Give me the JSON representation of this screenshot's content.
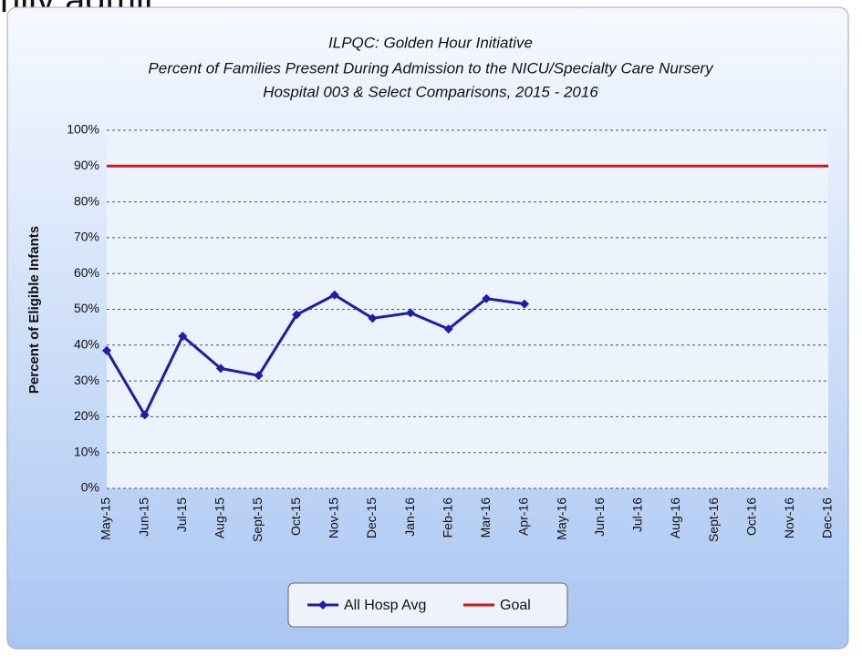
{
  "header_text": "nily admit",
  "chart_data": {
    "type": "line",
    "title": "ILPQC: Golden Hour Initiative",
    "subtitle": [
      "Percent of Families Present During Admission to the NICU/Specialty Care Nursery",
      "Hospital 003 & Select Comparisons, 2015 - 2016"
    ],
    "y_label": "Percent of Eligible Infants",
    "categories": [
      "May-15",
      "Jun-15",
      "Jul-15",
      "Aug-15",
      "Sept-15",
      "Oct-15",
      "Nov-15",
      "Dec-15",
      "Jan-16",
      "Feb-16",
      "Mar-16",
      "Apr-16",
      "May-16",
      "Jun-16",
      "Jul-16",
      "Aug-16",
      "Sept-16",
      "Oct-16",
      "Nov-16",
      "Dec-16"
    ],
    "series": [
      {
        "name": "All Hosp Avg",
        "color": "#1c1cb4",
        "marker": "diamond",
        "values": [
          38.5,
          20.5,
          42.5,
          33.5,
          31.5,
          48.5,
          54,
          47.5,
          49,
          44.5,
          53,
          51.5,
          null,
          null,
          null,
          null,
          null,
          null,
          null,
          null
        ]
      },
      {
        "name": "Goal",
        "color": "#e01010",
        "marker": "none",
        "values": [
          90,
          90,
          90,
          90,
          90,
          90,
          90,
          90,
          90,
          90,
          90,
          90,
          90,
          90,
          90,
          90,
          90,
          90,
          90,
          90
        ]
      }
    ],
    "ylim": [
      0,
      100
    ],
    "yticks": [
      {
        "value": 0,
        "label": "0%"
      },
      {
        "value": 10,
        "label": "10%"
      },
      {
        "value": 20,
        "label": "20%"
      },
      {
        "value": 30,
        "label": "30%"
      },
      {
        "value": 40,
        "label": "40%"
      },
      {
        "value": 50,
        "label": "50%"
      },
      {
        "value": 60,
        "label": "60%"
      },
      {
        "value": 70,
        "label": "70%"
      },
      {
        "value": 80,
        "label": "80%"
      },
      {
        "value": 90,
        "label": "90%"
      },
      {
        "value": 100,
        "label": "100%"
      }
    ],
    "grid": true,
    "legend": "bottom"
  }
}
